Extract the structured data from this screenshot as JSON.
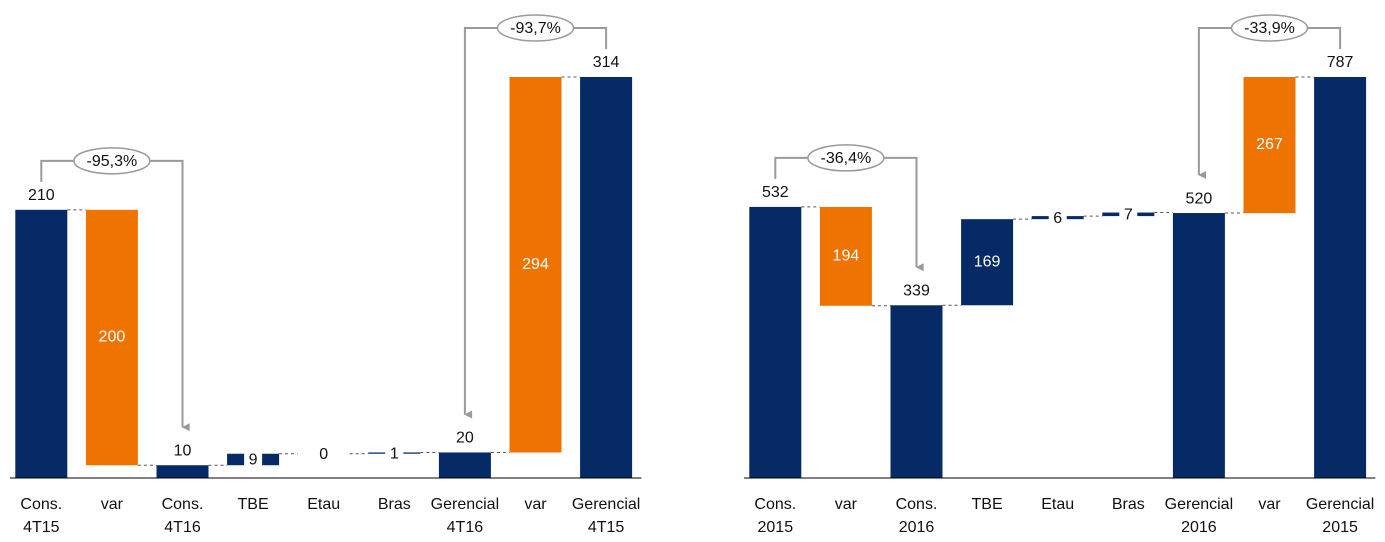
{
  "chart_data": [
    {
      "type": "waterfall",
      "categories": [
        [
          "Cons.",
          "4T15"
        ],
        [
          "var"
        ],
        [
          "Cons.",
          "4T16"
        ],
        [
          "TBE"
        ],
        [
          "Etau"
        ],
        [
          "Bras"
        ],
        [
          "Gerencial",
          "4T16"
        ],
        [
          "var"
        ],
        [
          "Gerencial",
          "4T15"
        ]
      ],
      "values": [
        210,
        200,
        10,
        9,
        0,
        1,
        20,
        294,
        314
      ],
      "measures": [
        "total",
        "decrease",
        "total",
        "increase",
        "increase",
        "increase",
        "total",
        "increase",
        "total"
      ],
      "colors": [
        "#052a66",
        "#ef7300",
        "#052a66",
        "#052a66",
        "#052a66",
        "#052a66",
        "#052a66",
        "#ef7300",
        "#052a66"
      ],
      "annotations": [
        {
          "text": "-95,3%",
          "from": 0,
          "to": 2
        },
        {
          "text": "-93,7%",
          "from": 8,
          "to": 6
        }
      ]
    },
    {
      "type": "waterfall",
      "categories": [
        [
          "Cons.",
          "2015"
        ],
        [
          "var"
        ],
        [
          "Cons.",
          "2016"
        ],
        [
          "TBE"
        ],
        [
          "Etau"
        ],
        [
          "Bras"
        ],
        [
          "Gerencial",
          "2016"
        ],
        [
          "var"
        ],
        [
          "Gerencial",
          "2015"
        ]
      ],
      "values": [
        532,
        194,
        339,
        169,
        6,
        7,
        520,
        267,
        787
      ],
      "measures": [
        "total",
        "decrease",
        "total",
        "increase",
        "increase",
        "increase",
        "total",
        "increase",
        "total"
      ],
      "colors": [
        "#052a66",
        "#ef7300",
        "#052a66",
        "#052a66",
        "#052a66",
        "#052a66",
        "#052a66",
        "#ef7300",
        "#052a66"
      ],
      "annotations": [
        {
          "text": "-36,4%",
          "from": 0,
          "to": 2
        },
        {
          "text": "-33,9%",
          "from": 8,
          "to": 6
        }
      ]
    }
  ]
}
